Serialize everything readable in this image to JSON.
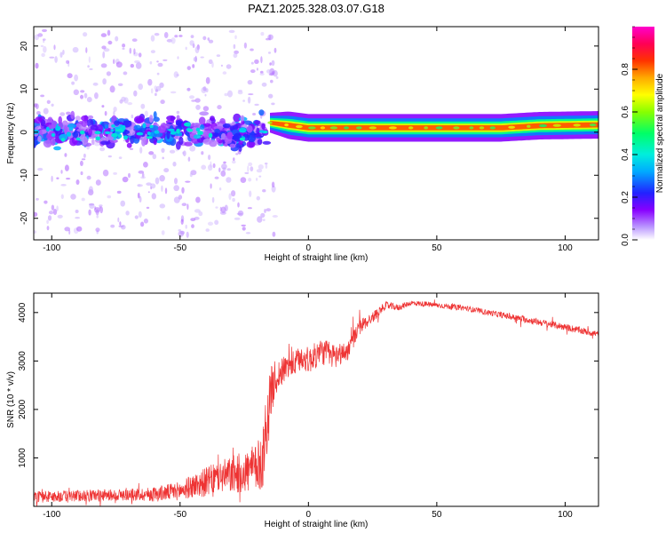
{
  "title": "PAZ1.2025.328.03.07.G18",
  "chart_data": [
    {
      "type": "heatmap",
      "xlabel": "Height of straight line (km)",
      "ylabel": "Frequency (Hz)",
      "xlim": [
        -107,
        113
      ],
      "ylim": [
        -25,
        24.5
      ],
      "xticks": [
        -100,
        -50,
        0,
        50,
        100
      ],
      "xticklabels": [
        "-100",
        "-50",
        "0",
        "50",
        "100"
      ],
      "yticks": [
        -20,
        -10,
        0,
        10,
        20
      ],
      "yticklabels": [
        "-20",
        "-10",
        "0",
        "10",
        "20"
      ],
      "colorbar": {
        "label": "Normalized spectral amplitude",
        "range": [
          0,
          1
        ],
        "ticks": [
          0,
          0.2,
          0.4,
          0.6,
          0.8
        ],
        "ticklabels": [
          "0.0",
          "0.2",
          "0.4",
          "0.6",
          "0.8"
        ],
        "colors": [
          "#ffffff",
          "#8800ff",
          "#2222ff",
          "#00ccff",
          "#00ff66",
          "#ffff00",
          "#ff8800",
          "#ff0000",
          "#ff00aa"
        ]
      },
      "ridge": {
        "x": [
          -15,
          0,
          20,
          50,
          75,
          90,
          113
        ],
        "freq": [
          2.2,
          1.0,
          1.0,
          1.0,
          1.0,
          1.5,
          1.7
        ],
        "amplitude": [
          0.5,
          0.9,
          0.95,
          0.95,
          0.9,
          0.8,
          0.85
        ]
      },
      "noisy_region": {
        "x": [
          -107,
          -16
        ],
        "freq_center": 0,
        "freq_spread": 6
      }
    },
    {
      "type": "line",
      "xlabel": "Height of straight line (km)",
      "ylabel": "SNR (10 * v/v)",
      "xlim": [
        -107,
        113
      ],
      "ylim": [
        0,
        4400
      ],
      "xticks": [
        -100,
        -50,
        0,
        50,
        100
      ],
      "xticklabels": [
        "-100",
        "-50",
        "0",
        "50",
        "100"
      ],
      "yticks": [
        1000,
        2000,
        3000,
        4000
      ],
      "yticklabels": [
        "1000",
        "2000",
        "3000",
        "4000"
      ],
      "color": "#ee3333",
      "series": [
        {
          "name": "SNR",
          "x": [
            -107,
            -100,
            -90,
            -80,
            -70,
            -60,
            -50,
            -45,
            -40,
            -35,
            -30,
            -25,
            -20,
            -18,
            -16,
            -14,
            -12,
            -10,
            -8,
            -5,
            -2,
            0,
            5,
            10,
            15,
            20,
            25,
            30,
            35,
            40,
            50,
            60,
            70,
            80,
            90,
            100,
            113
          ],
          "values": [
            200,
            200,
            220,
            230,
            240,
            250,
            320,
            420,
            500,
            600,
            650,
            700,
            800,
            950,
            1800,
            2500,
            2700,
            2800,
            2900,
            2950,
            3100,
            3000,
            3200,
            3100,
            3200,
            3700,
            3900,
            4150,
            4100,
            4200,
            4150,
            4100,
            4000,
            3900,
            3800,
            3700,
            3550
          ],
          "spread": [
            220,
            220,
            220,
            220,
            220,
            280,
            350,
            450,
            550,
            600,
            700,
            800,
            900,
            1200,
            1300,
            900,
            600,
            500,
            500,
            500,
            500,
            500,
            500,
            500,
            350,
            300,
            200,
            150,
            120,
            100,
            100,
            100,
            110,
            120,
            130,
            130,
            130
          ]
        }
      ]
    }
  ]
}
